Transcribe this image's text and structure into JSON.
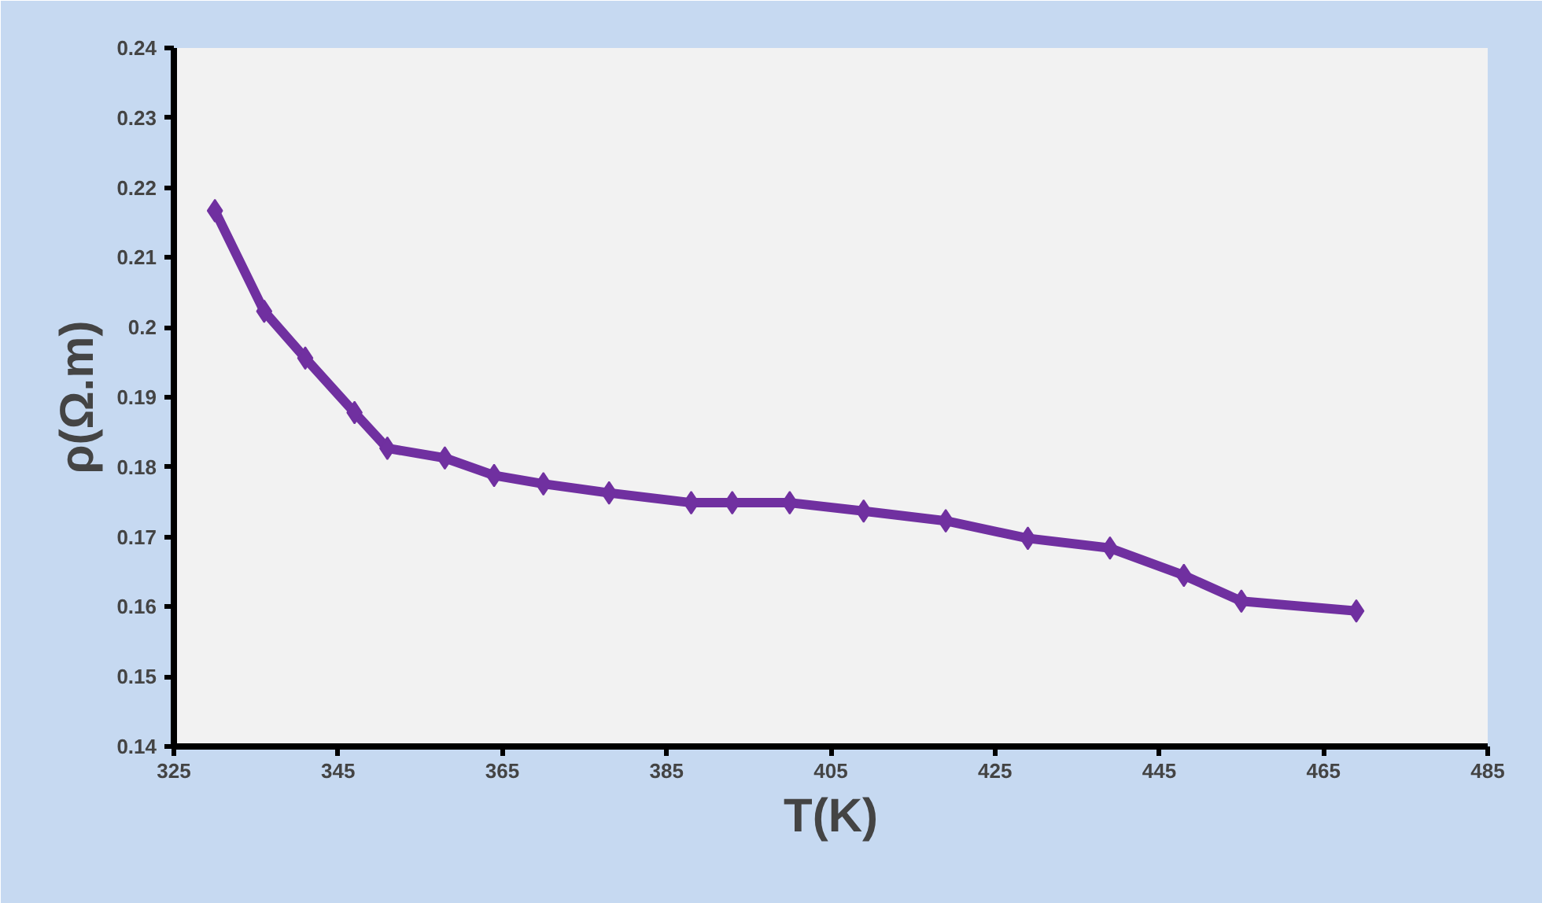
{
  "chart_data": {
    "type": "line",
    "xlabel": "T(K)",
    "ylabel": "ρ(Ω.m)",
    "x": [
      330,
      336,
      341,
      347,
      351,
      358,
      364,
      370,
      378,
      388,
      393,
      400,
      409,
      419,
      429,
      439,
      448,
      455,
      469
    ],
    "series": [
      {
        "color": "#7030a0",
        "values": [
          0.2167,
          0.2023,
          0.1956,
          0.1878,
          0.1827,
          0.1813,
          0.1788,
          0.1776,
          0.1763,
          0.1749,
          0.1749,
          0.1749,
          0.1737,
          0.1723,
          0.1698,
          0.1684,
          0.1645,
          0.1608,
          0.1594
        ]
      }
    ],
    "xlim": [
      325,
      485
    ],
    "xticks": [
      325,
      345,
      365,
      385,
      405,
      425,
      445,
      465,
      485
    ],
    "ylim": [
      0.14,
      0.24
    ],
    "yticks": [
      0.14,
      0.15,
      0.16,
      0.17,
      0.18,
      0.19,
      0.2,
      0.21,
      0.22,
      0.23,
      0.24
    ],
    "marker": "diamond",
    "line_style": "solid",
    "grid": false
  }
}
